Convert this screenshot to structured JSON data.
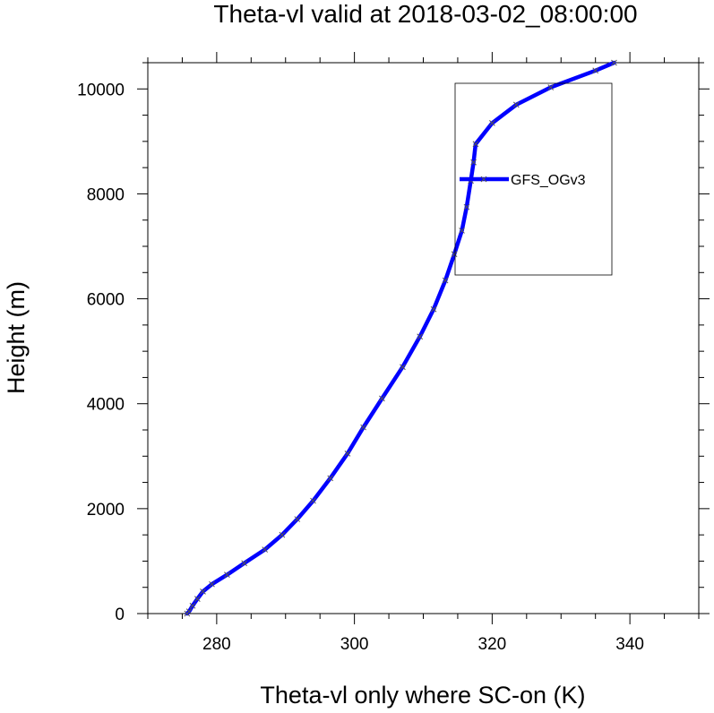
{
  "chart_data": {
    "type": "line",
    "title": "Theta-vl valid at 2018-03-02_08:00:00",
    "xlabel": "Theta-vl only where SC-on (K)",
    "ylabel": "Height (m)",
    "xlim": [
      270,
      350
    ],
    "ylim": [
      0,
      10500
    ],
    "xticks": [
      280,
      300,
      320,
      340
    ],
    "yticks": [
      0,
      2000,
      4000,
      6000,
      8000,
      10000
    ],
    "xtick_labels": [
      "280",
      "300",
      "320",
      "340"
    ],
    "ytick_labels": [
      "0",
      "2000",
      "4000",
      "6000",
      "8000",
      "10000"
    ],
    "grid": false,
    "legend_position": "top-right",
    "series": [
      {
        "name": "GFS_OGv3",
        "color": "#0000ff",
        "marker_color": "#555555",
        "x": [
          275.7,
          276.0,
          276.5,
          277.2,
          278.0,
          279.3,
          281.5,
          284.0,
          287.0,
          289.5,
          291.7,
          294.0,
          296.5,
          299.0,
          301.3,
          304.0,
          307.0,
          309.5,
          311.5,
          313.2,
          314.5,
          315.6,
          316.3,
          316.9,
          317.3,
          317.6,
          320.0,
          323.5,
          328.5,
          335.0,
          337.7
        ],
        "y": [
          0,
          40,
          150,
          280,
          420,
          560,
          740,
          960,
          1220,
          1500,
          1800,
          2150,
          2580,
          3050,
          3550,
          4100,
          4700,
          5280,
          5800,
          6350,
          6850,
          7300,
          7750,
          8250,
          8600,
          8950,
          9350,
          9700,
          10030,
          10350,
          10500
        ]
      }
    ]
  }
}
